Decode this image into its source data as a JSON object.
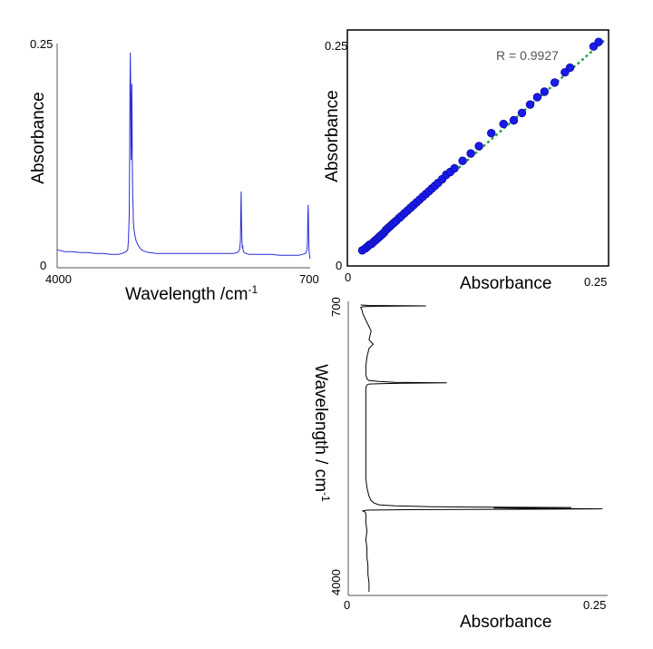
{
  "colors": {
    "spectrum_top": "#2b2bd6",
    "spectrum_rotated": "#000000",
    "scatter_points": "#1a1aee",
    "fit_line": "#2e9e4a",
    "annotation": "#555555"
  },
  "chart_data": [
    {
      "type": "line",
      "name": "top-left-spectrum",
      "xlabel": "Wavelength /cm",
      "xlabel_sup": "-1",
      "ylabel": "Absorbance",
      "xlim": [
        4000,
        700
      ],
      "ylim": [
        0,
        0.25
      ],
      "x_ticks": [
        "4000",
        "700"
      ],
      "y_ticks": [
        "0",
        "0.25"
      ],
      "grid": false,
      "series": [
        {
          "x": [
            4000,
            3900,
            3800,
            3700,
            3600,
            3500,
            3400,
            3300,
            3200,
            3150,
            3100,
            3080,
            3070,
            3060,
            3055,
            3050,
            3045,
            3040,
            3035,
            3030,
            3025,
            3020,
            3015,
            3010,
            3005,
            3000,
            2990,
            2980,
            2970,
            2950,
            2920,
            2900,
            2850,
            2800,
            2700,
            2600,
            2500,
            2400,
            2300,
            2200,
            2100,
            2000,
            1900,
            1800,
            1700,
            1650,
            1620,
            1610,
            1605,
            1600,
            1595,
            1590,
            1585,
            1580,
            1575,
            1570,
            1560,
            1540,
            1500,
            1450,
            1400,
            1300,
            1200,
            1100,
            1000,
            900,
            850,
            800,
            760,
            750,
            740,
            735,
            730,
            725,
            720,
            715,
            710,
            705,
            700
          ],
          "values": [
            0.02,
            0.018,
            0.018,
            0.017,
            0.017,
            0.016,
            0.016,
            0.015,
            0.015,
            0.016,
            0.018,
            0.02,
            0.03,
            0.06,
            0.12,
            0.2,
            0.24,
            0.19,
            0.12,
            0.15,
            0.205,
            0.12,
            0.08,
            0.07,
            0.05,
            0.045,
            0.038,
            0.034,
            0.03,
            0.026,
            0.022,
            0.02,
            0.018,
            0.017,
            0.016,
            0.016,
            0.016,
            0.016,
            0.016,
            0.016,
            0.016,
            0.016,
            0.016,
            0.016,
            0.016,
            0.017,
            0.02,
            0.03,
            0.06,
            0.085,
            0.05,
            0.03,
            0.022,
            0.025,
            0.02,
            0.018,
            0.017,
            0.016,
            0.015,
            0.015,
            0.015,
            0.015,
            0.015,
            0.014,
            0.014,
            0.014,
            0.014,
            0.015,
            0.016,
            0.018,
            0.02,
            0.03,
            0.06,
            0.07,
            0.04,
            0.02,
            0.015,
            0.012,
            0.01
          ]
        }
      ]
    },
    {
      "type": "scatter",
      "name": "correlation-plot",
      "xlabel": "Absorbance",
      "ylabel": "Absorbance",
      "xlim": [
        0,
        0.25
      ],
      "ylim": [
        0,
        0.25
      ],
      "x_ticks": [
        "0",
        "0.25"
      ],
      "y_ticks": [
        "0",
        "0.25"
      ],
      "grid": false,
      "annotation": "R = 0.9927",
      "fit_line": {
        "x": [
          0.01,
          0.25
        ],
        "y": [
          0.01,
          0.243
        ]
      },
      "x": [
        0.012,
        0.015,
        0.017,
        0.019,
        0.021,
        0.023,
        0.025,
        0.027,
        0.029,
        0.031,
        0.033,
        0.035,
        0.037,
        0.039,
        0.041,
        0.043,
        0.045,
        0.048,
        0.05,
        0.053,
        0.056,
        0.059,
        0.062,
        0.065,
        0.068,
        0.071,
        0.074,
        0.077,
        0.08,
        0.083,
        0.086,
        0.09,
        0.094,
        0.098,
        0.102,
        0.11,
        0.118,
        0.126,
        0.138,
        0.15,
        0.16,
        0.168,
        0.176,
        0.183,
        0.19,
        0.2,
        0.21,
        0.215,
        0.238,
        0.243
      ],
      "y": [
        0.014,
        0.016,
        0.018,
        0.02,
        0.021,
        0.023,
        0.025,
        0.027,
        0.029,
        0.031,
        0.033,
        0.036,
        0.038,
        0.04,
        0.042,
        0.044,
        0.046,
        0.049,
        0.051,
        0.054,
        0.057,
        0.06,
        0.063,
        0.066,
        0.069,
        0.072,
        0.075,
        0.078,
        0.081,
        0.084,
        0.087,
        0.091,
        0.096,
        0.099,
        0.103,
        0.111,
        0.119,
        0.127,
        0.141,
        0.151,
        0.155,
        0.163,
        0.172,
        0.18,
        0.186,
        0.196,
        0.207,
        0.212,
        0.235,
        0.24
      ]
    },
    {
      "type": "line",
      "name": "rotated-spectrum",
      "orientation": "vertical",
      "xlabel": "Absorbance",
      "ylabel": "Wavelength / cm",
      "ylabel_sup": "-1",
      "xlim": [
        0,
        0.25
      ],
      "ylim": [
        4000,
        700
      ],
      "x_ticks": [
        "0",
        "0.25"
      ],
      "y_ticks": [
        "700",
        "4000"
      ],
      "grid": false,
      "series": [
        {
          "wavelength": [
            700,
            705,
            710,
            715,
            720,
            730,
            750,
            800,
            850,
            900,
            950,
            1000,
            1050,
            1100,
            1150,
            1200,
            1300,
            1400,
            1500,
            1550,
            1570,
            1580,
            1590,
            1595,
            1600,
            1605,
            1610,
            1620,
            1650,
            1700,
            1800,
            1900,
            2000,
            2100,
            2200,
            2300,
            2400,
            2500,
            2600,
            2700,
            2800,
            2850,
            2900,
            2950,
            2980,
            3000,
            3010,
            3020,
            3025,
            3030,
            3035,
            3040,
            3045,
            3050,
            3055,
            3060,
            3070,
            3080,
            3100,
            3200,
            3300,
            3400,
            3500,
            3600,
            3700,
            3800,
            3900,
            4000
          ],
          "values": [
            0.012,
            0.02,
            0.075,
            0.03,
            0.014,
            0.012,
            0.013,
            0.014,
            0.016,
            0.018,
            0.02,
            0.022,
            0.021,
            0.02,
            0.024,
            0.02,
            0.018,
            0.017,
            0.017,
            0.018,
            0.02,
            0.03,
            0.045,
            0.095,
            0.05,
            0.03,
            0.02,
            0.018,
            0.017,
            0.017,
            0.017,
            0.017,
            0.017,
            0.017,
            0.017,
            0.017,
            0.017,
            0.017,
            0.017,
            0.017,
            0.018,
            0.019,
            0.02,
            0.022,
            0.025,
            0.03,
            0.045,
            0.08,
            0.12,
            0.215,
            0.14,
            0.17,
            0.245,
            0.18,
            0.06,
            0.018,
            0.014,
            0.016,
            0.017,
            0.017,
            0.018,
            0.017,
            0.018,
            0.018,
            0.019,
            0.019,
            0.02,
            0.02
          ]
        }
      ]
    }
  ]
}
